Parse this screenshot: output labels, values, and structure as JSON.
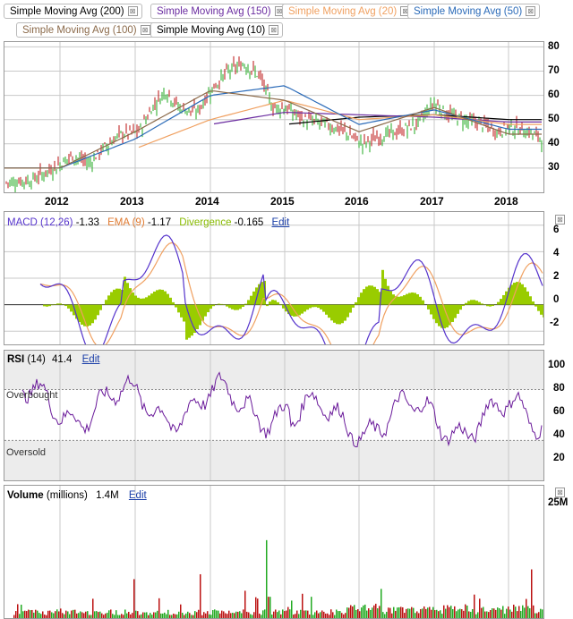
{
  "legend": [
    {
      "label": "Simple Moving Avg (200)",
      "color": "#000000"
    },
    {
      "label": "Simple Moving Avg (150)",
      "color": "#6a2ca0"
    },
    {
      "label": "Simple Moving Avg (20)",
      "color": "#f0a060"
    },
    {
      "label": "Simple Moving Avg (50)",
      "color": "#2a6ab8"
    },
    {
      "label": "Simple Moving Avg (100)",
      "color": "#8b6a4a"
    },
    {
      "label": "Simple Moving Avg (10)",
      "color": "#000000"
    }
  ],
  "close_glyph": "⊠",
  "price_axis": [
    "80",
    "70",
    "60",
    "50",
    "40",
    "30"
  ],
  "x_years": [
    "2012",
    "2013",
    "2014",
    "2015",
    "2016",
    "2017",
    "2018"
  ],
  "macd": {
    "label": "MACD (12,26)",
    "value": "-1.33",
    "ema_label": "EMA (9)",
    "ema_value": "-1.17",
    "div_label": "Divergence",
    "div_value": "-0.165",
    "edit": "Edit",
    "axis": [
      "6",
      "4",
      "2",
      "0",
      "-2"
    ]
  },
  "rsi": {
    "label": "RSI",
    "period": "(14)",
    "value": "41.4",
    "edit": "Edit",
    "overbought": "Overbought",
    "oversold": "Oversold",
    "axis": [
      "100",
      "80",
      "60",
      "40",
      "20"
    ]
  },
  "volume": {
    "label": "Volume",
    "unit": "(millions)",
    "value": "1.4M",
    "edit": "Edit",
    "axis": [
      "25M"
    ]
  },
  "colors": {
    "up": "#22aa22",
    "down": "#bb1111",
    "macd": "#5533cc",
    "ema": "#f0a060",
    "div": "#99cc00",
    "rsi": "#6a1a9a",
    "grid": "#c8c8c8"
  },
  "chart_data": {
    "type": "line",
    "x": [
      "2012",
      "2013",
      "2014",
      "2015",
      "2016",
      "2017",
      "2018"
    ],
    "series": [
      {
        "name": "Simple Moving Avg (200)",
        "values": [
          null,
          null,
          null,
          48,
          51,
          52,
          50
        ]
      },
      {
        "name": "Simple Moving Avg (150)",
        "values": [
          null,
          null,
          48,
          53,
          52,
          51,
          49
        ]
      },
      {
        "name": "Simple Moving Avg (100)",
        "values": [
          null,
          38,
          50,
          58,
          50,
          52,
          48
        ]
      },
      {
        "name": "Simple Moving Avg (50)",
        "values": [
          30,
          42,
          60,
          64,
          48,
          54,
          46
        ]
      },
      {
        "name": "Simple Moving Avg (20)",
        "values": [
          30,
          45,
          62,
          58,
          45,
          55,
          44
        ]
      }
    ],
    "price_close_approx": [
      28,
      45,
      55,
      60,
      42,
      55,
      44
    ],
    "ylim": [
      20,
      82
    ],
    "macd": {
      "ylim": [
        -3,
        7
      ],
      "last": -1.33,
      "ema_last": -1.17,
      "divergence_last": -0.165
    },
    "rsi": {
      "ylim": [
        0,
        100
      ],
      "overbought": 70,
      "oversold": 30,
      "last": 41.4
    },
    "volume": {
      "ylim": [
        0,
        25
      ],
      "unit": "M",
      "last": 1.4
    }
  }
}
